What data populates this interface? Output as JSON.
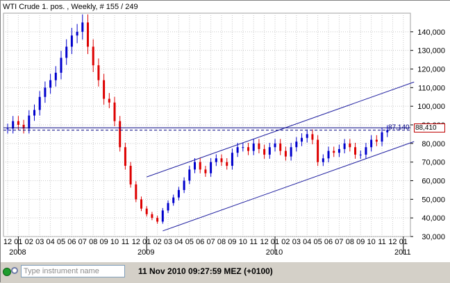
{
  "window": {
    "title": "WTI Crude 1. pos. , Weekly, # 155 / 249"
  },
  "statusbar": {
    "instrument_placeholder": "Type instrument name",
    "timestamp": "11 Nov 2010 09:27:59  MEZ (+0100)"
  },
  "colors": {
    "up_candle": "#0000cc",
    "down_candle": "#dd0000",
    "trend_channel": "#2020a0",
    "reference_line": "#000080",
    "price_box_border": "#c00000"
  },
  "chart_data": {
    "type": "candlestick",
    "title": "WTI Crude 1. pos. , Weekly, # 155 / 249",
    "y_axis": {
      "position": "right",
      "min": 30000,
      "max": 150000,
      "ticks": [
        30000,
        40000,
        50000,
        60000,
        70000,
        80000,
        90000,
        100000,
        110000,
        120000,
        130000,
        140000
      ],
      "tick_labels": [
        "30,000",
        "40,000",
        "50,000",
        "60,000",
        "70,000",
        "80,000",
        "90,000",
        "100,000",
        "110,000",
        "120,000",
        "130,000",
        "140,000"
      ]
    },
    "x_axis": {
      "month_labels": [
        "12",
        "01",
        "02",
        "03",
        "04",
        "05",
        "06",
        "07",
        "08",
        "09",
        "10",
        "11",
        "12",
        "01",
        "02",
        "03",
        "04",
        "05",
        "06",
        "07",
        "08",
        "09",
        "10",
        "11",
        "12",
        "01",
        "02",
        "03",
        "04",
        "05",
        "06",
        "07",
        "08",
        "09",
        "10",
        "11",
        "12",
        "01"
      ],
      "year_labels": [
        {
          "label": "2008",
          "month_index": 1
        },
        {
          "label": "2009",
          "month_index": 13
        },
        {
          "label": "2010",
          "month_index": 25
        },
        {
          "label": "2011",
          "month_index": 37
        }
      ]
    },
    "grid": true,
    "reference_lines": [
      {
        "value": 87140,
        "style": "dashed",
        "label": "87,140"
      },
      {
        "value": 88410,
        "style": "solid",
        "label": "88,410"
      }
    ],
    "trend_lines": [
      {
        "name": "upper channel",
        "start": {
          "month_index": 13,
          "value": 62000
        },
        "end": {
          "month_index": 38,
          "value": 113000
        }
      },
      {
        "name": "lower channel",
        "start": {
          "month_index": 14.5,
          "value": 33000
        },
        "end": {
          "month_index": 38,
          "value": 81000
        }
      }
    ],
    "series": [
      {
        "month": 0,
        "close": 88000
      },
      {
        "month": 0.5,
        "close": 92000
      },
      {
        "month": 1,
        "close": 90000
      },
      {
        "month": 1.5,
        "close": 88000
      },
      {
        "month": 2,
        "close": 95000
      },
      {
        "month": 2.5,
        "close": 98000
      },
      {
        "month": 3,
        "close": 105000
      },
      {
        "month": 3.5,
        "close": 110000
      },
      {
        "month": 4,
        "close": 114000
      },
      {
        "month": 4.5,
        "close": 118000
      },
      {
        "month": 5,
        "close": 126000
      },
      {
        "month": 5.5,
        "close": 132000
      },
      {
        "month": 6,
        "close": 138000
      },
      {
        "month": 6.5,
        "close": 140000
      },
      {
        "month": 7,
        "close": 145000
      },
      {
        "month": 7.5,
        "close": 132000
      },
      {
        "month": 8,
        "close": 122000
      },
      {
        "month": 8.5,
        "close": 114000
      },
      {
        "month": 9,
        "close": 104000
      },
      {
        "month": 9.5,
        "close": 102000
      },
      {
        "month": 10,
        "close": 92000
      },
      {
        "month": 10.5,
        "close": 78000
      },
      {
        "month": 11,
        "close": 68000
      },
      {
        "month": 11.5,
        "close": 58000
      },
      {
        "month": 12,
        "close": 50000
      },
      {
        "month": 12.5,
        "close": 45000
      },
      {
        "month": 13,
        "close": 42000
      },
      {
        "month": 13.5,
        "close": 40000
      },
      {
        "month": 14,
        "close": 38000
      },
      {
        "month": 14.5,
        "close": 44000
      },
      {
        "month": 15,
        "close": 48000
      },
      {
        "month": 15.5,
        "close": 51000
      },
      {
        "month": 16,
        "close": 55000
      },
      {
        "month": 16.5,
        "close": 60000
      },
      {
        "month": 17,
        "close": 66000
      },
      {
        "month": 17.5,
        "close": 70000
      },
      {
        "month": 18,
        "close": 66000
      },
      {
        "month": 18.5,
        "close": 64000
      },
      {
        "month": 19,
        "close": 70000
      },
      {
        "month": 19.5,
        "close": 72000
      },
      {
        "month": 20,
        "close": 70000
      },
      {
        "month": 20.5,
        "close": 68000
      },
      {
        "month": 21,
        "close": 75000
      },
      {
        "month": 21.5,
        "close": 78000
      },
      {
        "month": 22,
        "close": 78000
      },
      {
        "month": 22.5,
        "close": 76000
      },
      {
        "month": 23,
        "close": 80000
      },
      {
        "month": 23.5,
        "close": 77000
      },
      {
        "month": 24,
        "close": 74000
      },
      {
        "month": 24.5,
        "close": 78000
      },
      {
        "month": 25,
        "close": 80000
      },
      {
        "month": 25.5,
        "close": 76000
      },
      {
        "month": 26,
        "close": 73000
      },
      {
        "month": 26.5,
        "close": 78000
      },
      {
        "month": 27,
        "close": 81000
      },
      {
        "month": 27.5,
        "close": 83000
      },
      {
        "month": 28,
        "close": 85000
      },
      {
        "month": 28.5,
        "close": 82000
      },
      {
        "month": 29,
        "close": 70000
      },
      {
        "month": 29.5,
        "close": 72000
      },
      {
        "month": 30,
        "close": 76000
      },
      {
        "month": 30.5,
        "close": 75000
      },
      {
        "month": 31,
        "close": 77000
      },
      {
        "month": 31.5,
        "close": 80000
      },
      {
        "month": 32,
        "close": 78000
      },
      {
        "month": 32.5,
        "close": 74000
      },
      {
        "month": 33,
        "close": 74000
      },
      {
        "month": 33.5,
        "close": 78000
      },
      {
        "month": 34,
        "close": 82000
      },
      {
        "month": 34.5,
        "close": 81000
      },
      {
        "month": 35,
        "close": 86000
      },
      {
        "month": 35.5,
        "close": 87140
      }
    ]
  }
}
